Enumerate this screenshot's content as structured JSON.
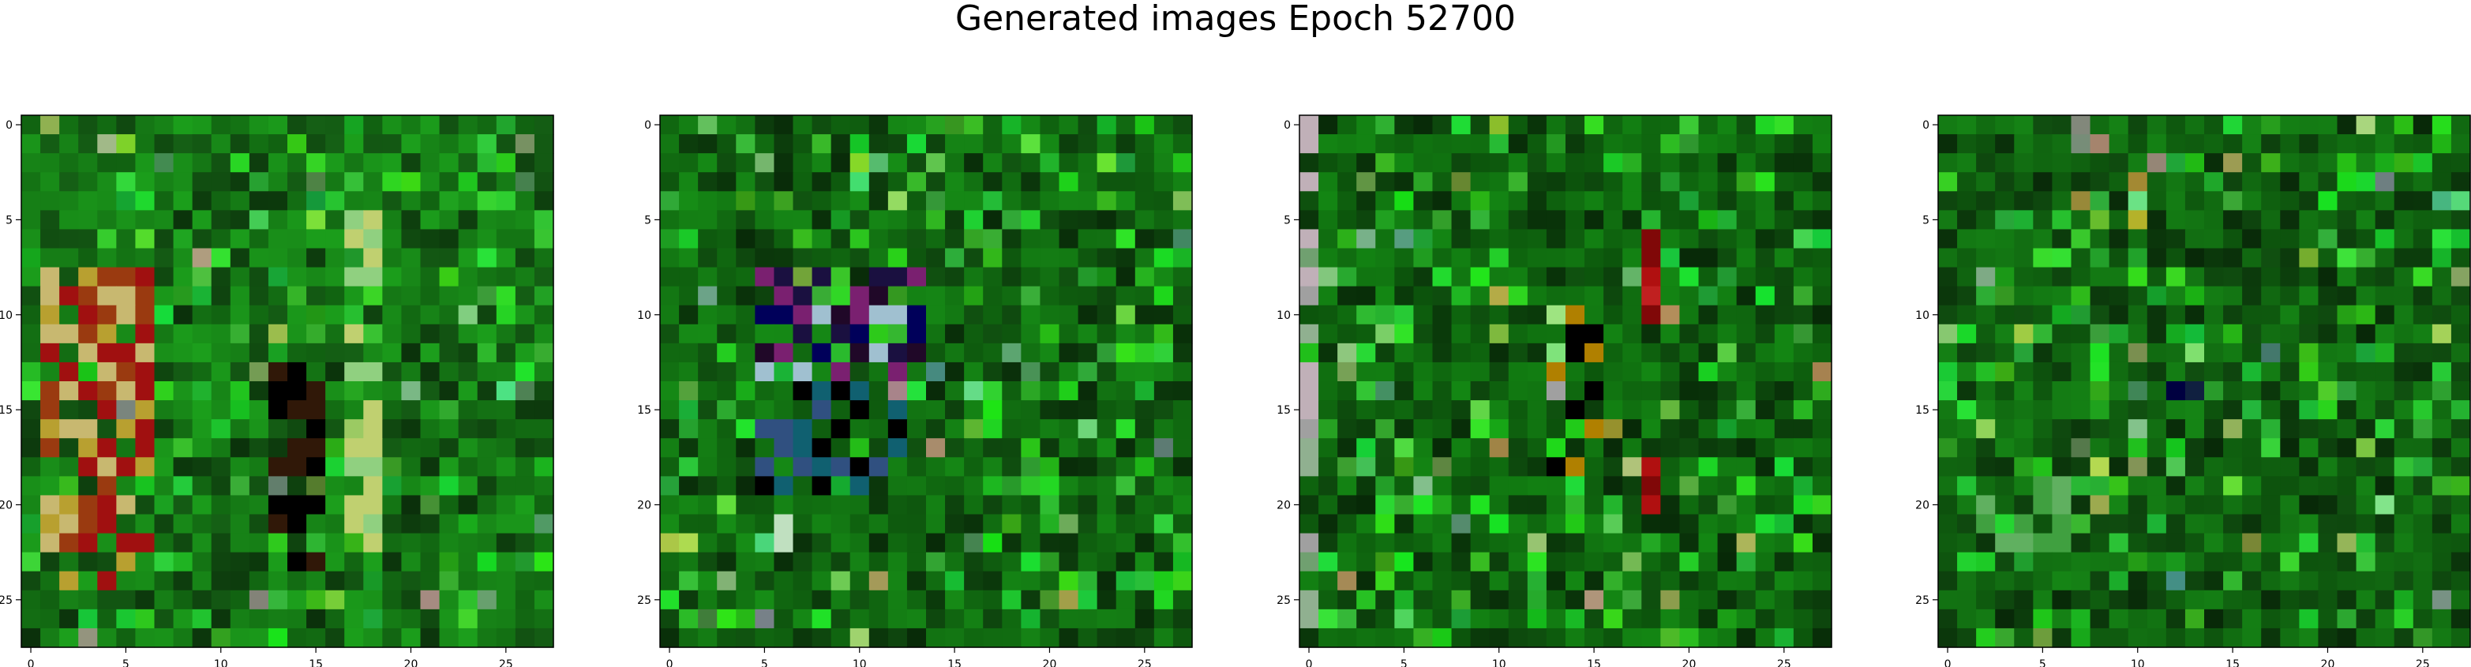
{
  "figure": {
    "title": "Generated images Epoch 52700"
  },
  "chart_data": [
    {
      "type": "heatmap",
      "title": "",
      "xlabel": "",
      "ylabel": "",
      "xlim": [
        -0.5,
        27.5
      ],
      "ylim": [
        27.5,
        -0.5
      ],
      "x_ticks": [
        0,
        5,
        10,
        15,
        20,
        25
      ],
      "y_ticks": [
        0,
        5,
        10,
        15,
        20,
        25
      ],
      "grid": false,
      "cells": [
        28,
        28
      ],
      "dominant_color": "#1e8a1e",
      "features": [
        {
          "x": [
            1,
            6
          ],
          "y": [
            8,
            24
          ],
          "colors": [
            "#9a3a10",
            "#b8a030",
            "#c8b870",
            "#a01010"
          ]
        },
        {
          "x": [
            17,
            18
          ],
          "y": [
            5,
            22
          ],
          "colors": [
            "#c0d070",
            "#90d080"
          ]
        },
        {
          "x": [
            13,
            15
          ],
          "y": [
            13,
            23
          ],
          "colors": [
            "#000000",
            "#301808"
          ]
        }
      ],
      "seed": 7
    },
    {
      "type": "heatmap",
      "title": "",
      "xlabel": "",
      "ylabel": "",
      "xlim": [
        -0.5,
        27.5
      ],
      "ylim": [
        27.5,
        -0.5
      ],
      "x_ticks": [
        0,
        5,
        10,
        15,
        20,
        25
      ],
      "y_ticks": [
        0,
        5,
        10,
        15,
        20,
        25
      ],
      "grid": false,
      "cells": [
        28,
        28
      ],
      "dominant_color": "#187a18",
      "features": [
        {
          "x": [
            5,
            13
          ],
          "y": [
            8,
            13
          ],
          "colors": [
            "#00005a",
            "#200828",
            "#7a2070",
            "#a0c0d0",
            "#1a1040"
          ]
        },
        {
          "x": [
            6,
            6
          ],
          "y": [
            20,
            22
          ],
          "colors": [
            "#e8f0e8",
            "#c0e0c0"
          ]
        },
        {
          "x": [
            5,
            12
          ],
          "y": [
            14,
            19
          ],
          "colors": [
            "#106070",
            "#305080",
            "#000000"
          ]
        }
      ],
      "seed": 19
    },
    {
      "type": "heatmap",
      "title": "",
      "xlabel": "",
      "ylabel": "",
      "xlim": [
        -0.5,
        27.5
      ],
      "ylim": [
        27.5,
        -0.5
      ],
      "x_ticks": [
        0,
        5,
        10,
        15,
        20,
        25
      ],
      "y_ticks": [
        0,
        5,
        10,
        15,
        20,
        25
      ],
      "grid": false,
      "cells": [
        28,
        28
      ],
      "dominant_color": "#157515",
      "features": [
        {
          "x": [
            18,
            18
          ],
          "y": [
            6,
            20
          ],
          "colors": [
            "#b01010",
            "#c02020",
            "#800808"
          ]
        },
        {
          "x": [
            0,
            0
          ],
          "y": [
            0,
            27
          ],
          "colors": [
            "#70a070",
            "#c0b0b8",
            "#90b090",
            "#a0a0a0"
          ]
        },
        {
          "x": [
            13,
            15
          ],
          "y": [
            10,
            18
          ],
          "colors": [
            "#000000",
            "#b08000",
            "#a0a0a0"
          ]
        }
      ],
      "seed": 31
    },
    {
      "type": "heatmap",
      "title": "",
      "xlabel": "",
      "ylabel": "",
      "xlim": [
        -0.5,
        27.5
      ],
      "ylim": [
        27.5,
        -0.5
      ],
      "x_ticks": [
        0,
        5,
        10,
        15,
        20,
        25
      ],
      "y_ticks": [
        0,
        5,
        10,
        15,
        20,
        25
      ],
      "grid": false,
      "cells": [
        28,
        28
      ],
      "dominant_color": "#177317",
      "features": [
        {
          "x": [
            12,
            13
          ],
          "y": [
            13,
            14
          ],
          "colors": [
            "#000040",
            "#102040"
          ]
        },
        {
          "x": [
            2,
            6
          ],
          "y": [
            19,
            22
          ],
          "colors": [
            "#40a040",
            "#60b060"
          ]
        }
      ],
      "seed": 53
    }
  ]
}
